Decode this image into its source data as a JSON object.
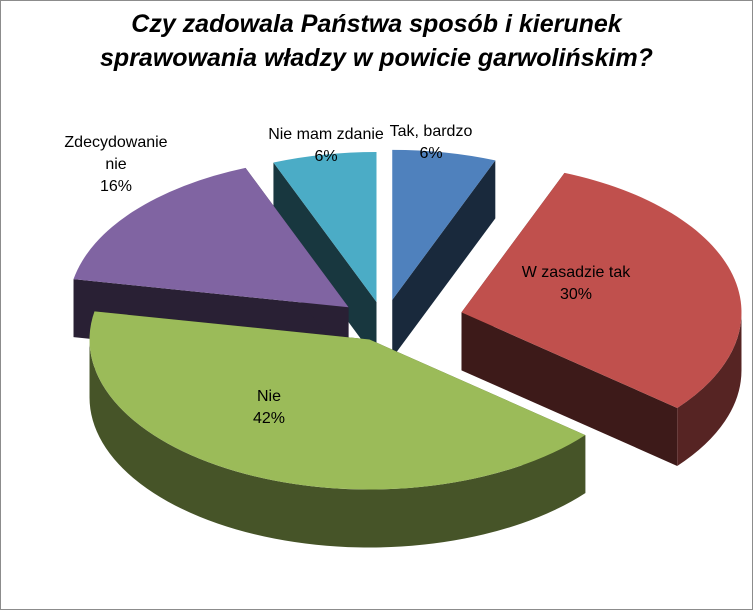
{
  "chart_data": {
    "type": "pie",
    "title": "Czy zadowala Państwa sposób  i kierunek\nsprawowania władzy w powicie garwolińskim?",
    "series": [
      {
        "slices": [
          {
            "label": [
              "Tak, bardzo"
            ],
            "value": 6,
            "value_label": "6%",
            "color": "#4F81BD"
          },
          {
            "label": [
              "W zasadzie tak"
            ],
            "value": 30,
            "value_label": "30%",
            "color": "#C0504D"
          },
          {
            "label": [
              "Nie"
            ],
            "value": 42,
            "value_label": "42%",
            "color": "#9BBB59"
          },
          {
            "label": [
              "Zdecydowanie",
              "nie"
            ],
            "value": 16,
            "value_label": "16%",
            "color": "#8064A2"
          },
          {
            "label": [
              "Nie mam zdanie"
            ],
            "value": 6,
            "value_label": "6%",
            "color": "#4BACC6"
          }
        ]
      }
    ],
    "exploded": true,
    "three_d": true,
    "legend": "none"
  }
}
